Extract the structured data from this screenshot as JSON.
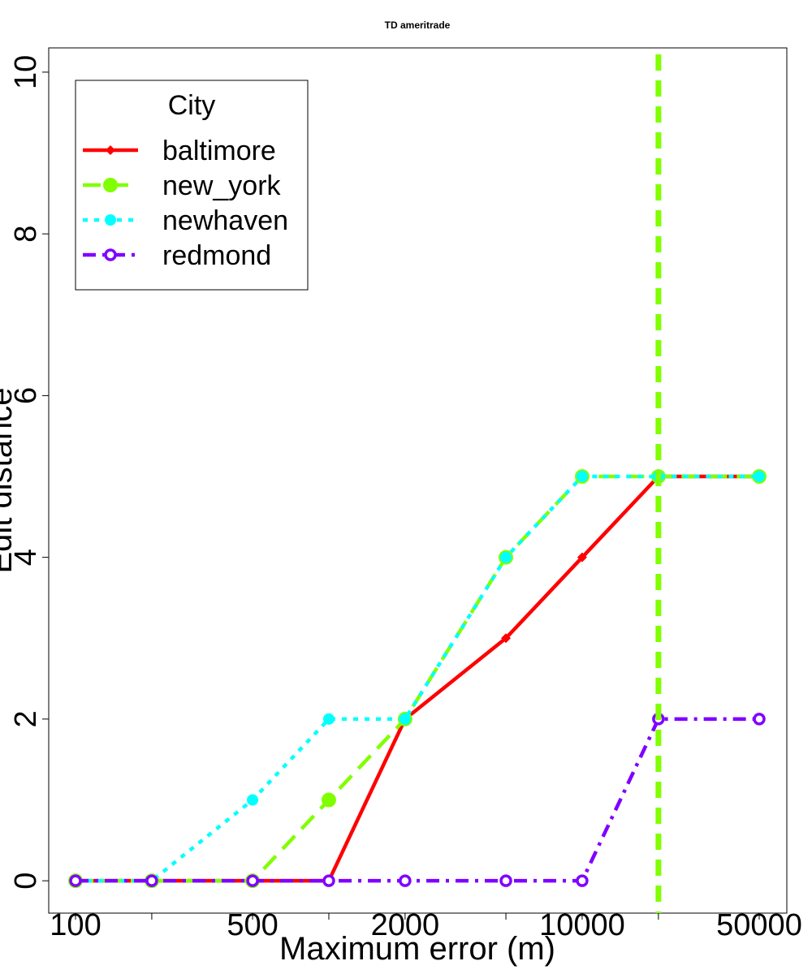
{
  "chart_data": {
    "type": "line",
    "title": "TD ameritrade",
    "xlabel": "Maximum error (m)",
    "ylabel": "Edit distance",
    "x_scale": "log",
    "x": [
      100,
      200,
      500,
      1000,
      2000,
      5000,
      10000,
      20000,
      50000
    ],
    "x_ticks": [
      100,
      200,
      500,
      1000,
      2000,
      5000,
      10000,
      20000,
      50000
    ],
    "x_tick_labels": [
      "100",
      "",
      "500",
      "",
      "2000",
      "",
      "10000",
      "",
      "50000"
    ],
    "ylim": [
      -0.4,
      10.3
    ],
    "y_ticks": [
      0,
      2,
      4,
      6,
      8,
      10
    ],
    "y_tick_labels": [
      "0",
      "2",
      "4",
      "6",
      "8",
      "10"
    ],
    "grid": false,
    "legend": {
      "title": "City",
      "placement": "top-left"
    },
    "series": [
      {
        "name": "baltimore",
        "color": "#ff0000",
        "marker": "diamond",
        "dash": "solid",
        "values": [
          0,
          0,
          0,
          0,
          2,
          3,
          4,
          5,
          5
        ]
      },
      {
        "name": "new_york",
        "color": "#80ff00",
        "marker": "circle",
        "dash": "long-dash",
        "values": [
          0,
          0,
          0,
          1,
          2,
          4,
          5,
          5,
          5
        ]
      },
      {
        "name": "newhaven",
        "color": "#00ffff",
        "marker": "circle",
        "dash": "dotted",
        "values": [
          0,
          0,
          1,
          2,
          2,
          4,
          5,
          5,
          5
        ]
      },
      {
        "name": "redmond",
        "color": "#8000ff",
        "marker": "open-circle",
        "dash": "dash-dot",
        "values": [
          0,
          0,
          0,
          0,
          0,
          0,
          0,
          2,
          2
        ]
      }
    ],
    "vline": {
      "x": 20000,
      "color": "#80ff00",
      "style": "dashed"
    }
  }
}
